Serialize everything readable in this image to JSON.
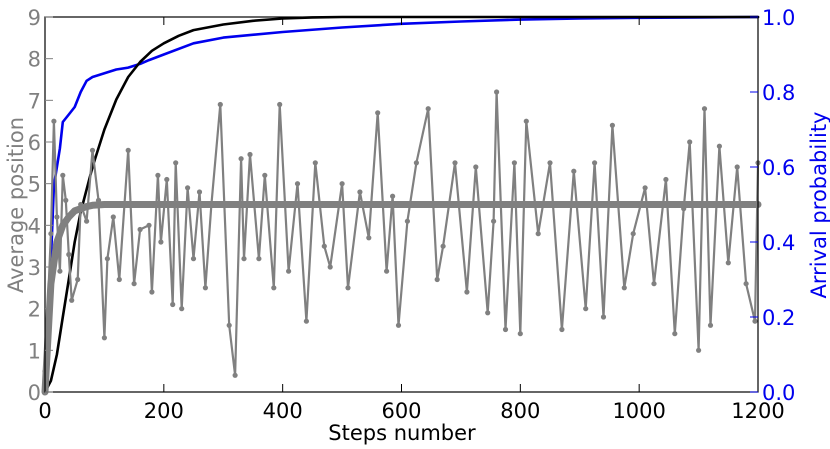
{
  "chart_data": {
    "type": "line",
    "xlabel": "Steps number",
    "ylabel_left": "Average position",
    "ylabel_right": "Arrival probability",
    "xlim": [
      0,
      1200
    ],
    "ylim_left": [
      0,
      9
    ],
    "ylim_right": [
      0,
      1.0
    ],
    "x_ticks": [
      0,
      200,
      400,
      600,
      800,
      1000,
      1200
    ],
    "y_left_ticks": [
      0,
      1,
      2,
      3,
      4,
      5,
      6,
      7,
      8,
      9
    ],
    "y_right_ticks": [
      0.0,
      0.2,
      0.4,
      0.6,
      0.8,
      1.0
    ],
    "y_right_tick_labels": [
      "0.0",
      "0.2",
      "0.4",
      "0.6",
      "0.8",
      "1.0"
    ],
    "colors": {
      "left_axis": "#808080",
      "right_axis": "#0000ee",
      "position_series": "#808080",
      "average_series": "#808080",
      "probability_series": "#0000ee",
      "cumulative_series": "#000000"
    },
    "series": [
      {
        "axis": "left",
        "style": "line-markers",
        "x": [
          0,
          10,
          15,
          20,
          25,
          30,
          35,
          40,
          45,
          55,
          60,
          70,
          80,
          90,
          100,
          105,
          115,
          125,
          140,
          150,
          160,
          175,
          180,
          190,
          195,
          205,
          215,
          220,
          230,
          240,
          250,
          260,
          270,
          280,
          295,
          310,
          320,
          330,
          335,
          345,
          360,
          370,
          385,
          395,
          410,
          425,
          440,
          455,
          470,
          480,
          500,
          510,
          530,
          545,
          560,
          575,
          585,
          595,
          610,
          625,
          645,
          660,
          670,
          690,
          710,
          725,
          745,
          755,
          760,
          775,
          790,
          800,
          810,
          830,
          850,
          870,
          890,
          910,
          925,
          940,
          955,
          975,
          990,
          1010,
          1025,
          1045,
          1060,
          1075,
          1085,
          1100,
          1110,
          1120,
          1135,
          1150,
          1165,
          1180,
          1195,
          1200
        ],
        "y": [
          0.5,
          3.8,
          6.5,
          4.2,
          2.9,
          5.2,
          4.6,
          3.3,
          2.2,
          2.7,
          4.5,
          4.1,
          5.8,
          4.6,
          1.3,
          3.2,
          4.2,
          2.7,
          5.8,
          2.6,
          3.9,
          4.0,
          2.4,
          5.2,
          3.6,
          5.1,
          2.1,
          5.5,
          2.0,
          4.9,
          3.2,
          4.8,
          2.5,
          4.5,
          6.9,
          1.6,
          0.4,
          5.6,
          3.2,
          5.7,
          3.2,
          5.2,
          2.5,
          6.9,
          2.9,
          5.0,
          1.7,
          5.5,
          3.5,
          3.0,
          5.0,
          2.5,
          4.8,
          3.7,
          6.7,
          2.9,
          4.7,
          1.6,
          4.1,
          5.5,
          6.8,
          2.7,
          3.5,
          5.5,
          2.4,
          5.4,
          1.9,
          4.1,
          7.2,
          1.5,
          5.5,
          1.4,
          6.5,
          3.8,
          5.5,
          1.5,
          5.3,
          2.0,
          5.5,
          1.8,
          6.4,
          2.5,
          3.8,
          4.9,
          2.6,
          5.1,
          1.4,
          4.4,
          6.0,
          1.0,
          6.8,
          1.6,
          5.9,
          3.1,
          5.4,
          2.6,
          1.7,
          5.5
        ]
      },
      {
        "axis": "left",
        "style": "thick-line",
        "x": [
          0,
          10,
          20,
          30,
          40,
          50,
          60,
          70,
          80,
          90,
          100,
          150,
          200,
          300,
          400,
          500,
          600,
          800,
          1000,
          1200
        ],
        "y": [
          0.0,
          2.6,
          3.6,
          4.0,
          4.2,
          4.35,
          4.4,
          4.45,
          4.48,
          4.49,
          4.5,
          4.5,
          4.5,
          4.5,
          4.5,
          4.5,
          4.5,
          4.5,
          4.5,
          4.5
        ]
      },
      {
        "axis": "right",
        "style": "line",
        "x": [
          0,
          5,
          10,
          15,
          20,
          25,
          30,
          40,
          50,
          60,
          70,
          80,
          90,
          100,
          120,
          140,
          150,
          160,
          175,
          200,
          250,
          300,
          400,
          500,
          600,
          700,
          800,
          900,
          1000,
          1100,
          1200
        ],
        "y": [
          0.0,
          0.1,
          0.35,
          0.55,
          0.6,
          0.65,
          0.72,
          0.74,
          0.76,
          0.8,
          0.83,
          0.84,
          0.845,
          0.85,
          0.86,
          0.865,
          0.87,
          0.875,
          0.885,
          0.9,
          0.93,
          0.945,
          0.96,
          0.972,
          0.982,
          0.988,
          0.993,
          0.996,
          0.998,
          0.999,
          1.0
        ]
      },
      {
        "axis": "right",
        "style": "line",
        "x": [
          0,
          10,
          20,
          30,
          40,
          50,
          60,
          80,
          100,
          120,
          140,
          160,
          180,
          200,
          225,
          250,
          300,
          350,
          400,
          450,
          500,
          600,
          800,
          1000,
          1200
        ],
        "y": [
          0.0,
          0.03,
          0.1,
          0.2,
          0.3,
          0.4,
          0.48,
          0.6,
          0.7,
          0.78,
          0.84,
          0.88,
          0.91,
          0.93,
          0.95,
          0.965,
          0.98,
          0.99,
          0.996,
          0.999,
          1.0,
          1.0,
          1.0,
          1.0,
          1.0
        ]
      }
    ]
  }
}
